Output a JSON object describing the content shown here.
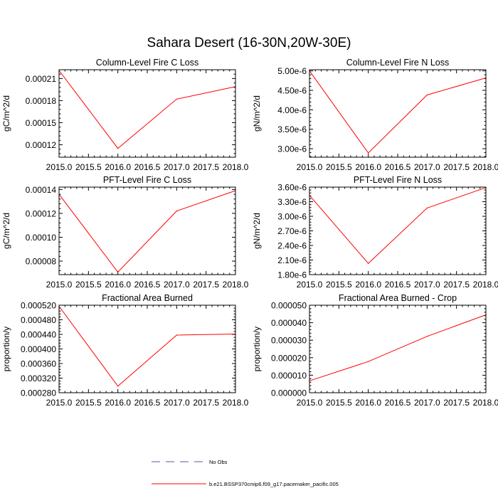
{
  "figure": {
    "title": "Sahara Desert (16-30N,20W-30E)"
  },
  "legend": {
    "placement": "bottom-center",
    "entries": [
      {
        "label": "No Obs",
        "color": "#5a5a9a",
        "dash": true
      },
      {
        "label": "b.e21.BSSP370cmip6.f09_g17.pacemaker_pacific.005",
        "color": "#ff0000",
        "dash": false
      }
    ]
  },
  "chart_data": [
    {
      "type": "line",
      "title": "Column-Level Fire C Loss",
      "ylabel": "gC/m^2/d",
      "xlabel": "",
      "x": [
        2015.0,
        2016.0,
        2017.0,
        2018.0
      ],
      "xlim": [
        2015.0,
        2018.0
      ],
      "xticks": [
        "2015.0",
        "2015.5",
        "2016.0",
        "2016.5",
        "2017.0",
        "2017.5",
        "2018.0"
      ],
      "ylim": [
        0.000103,
        0.000222
      ],
      "yticks": [
        "0.00012",
        "0.00015",
        "0.00018",
        "0.00021"
      ],
      "yticks_values": [
        0.00012,
        0.00015,
        0.00018,
        0.00021
      ],
      "series": [
        {
          "values": [
            0.000221,
            0.000115,
            0.000182,
            0.000199
          ],
          "color": "#ff0000"
        }
      ]
    },
    {
      "type": "line",
      "title": "Column-Level Fire N Loss",
      "ylabel": "gN/m^2/d",
      "xlabel": "",
      "x": [
        2015.0,
        2016.0,
        2017.0,
        2018.0
      ],
      "xlim": [
        2015.0,
        2018.0
      ],
      "xticks": [
        "2015.0",
        "2015.5",
        "2016.0",
        "2016.5",
        "2017.0",
        "2017.5",
        "2018.0"
      ],
      "ylim": [
        2.78e-06,
        5.03e-06
      ],
      "yticks": [
        "3.00e-6",
        "3.50e-6",
        "4.00e-6",
        "4.50e-6",
        "5.00e-6"
      ],
      "yticks_values": [
        3e-06,
        3.5e-06,
        4e-06,
        4.5e-06,
        5e-06
      ],
      "series": [
        {
          "values": [
            5e-06,
            2.89e-06,
            4.38e-06,
            4.82e-06
          ],
          "color": "#ff0000"
        }
      ]
    },
    {
      "type": "line",
      "title": "PFT-Level Fire C Loss",
      "ylabel": "gC/m^2/d",
      "xlabel": "",
      "x": [
        2015.0,
        2016.0,
        2017.0,
        2018.0
      ],
      "xlim": [
        2015.0,
        2018.0
      ],
      "xticks": [
        "2015.0",
        "2015.5",
        "2016.0",
        "2016.5",
        "2017.0",
        "2017.5",
        "2018.0"
      ],
      "ylim": [
        6.87e-05,
        0.000142
      ],
      "yticks": [
        "0.00008",
        "0.00010",
        "0.00012",
        "0.00014"
      ],
      "yticks_values": [
        8e-05,
        0.0001,
        0.00012,
        0.00014
      ],
      "series": [
        {
          "values": [
            0.000136,
            7.08e-05,
            0.000122,
            0.000139
          ],
          "color": "#ff0000"
        }
      ]
    },
    {
      "type": "line",
      "title": "PFT-Level Fire N Loss",
      "ylabel": "gN/m^2/d",
      "xlabel": "",
      "x": [
        2015.0,
        2016.0,
        2017.0,
        2018.0
      ],
      "xlim": [
        2015.0,
        2018.0
      ],
      "xticks": [
        "2015.0",
        "2015.5",
        "2016.0",
        "2016.5",
        "2017.0",
        "2017.5",
        "2018.0"
      ],
      "ylim": [
        1.8e-06,
        3.6e-06
      ],
      "yticks": [
        "1.80e-6",
        "2.10e-6",
        "2.40e-6",
        "2.70e-6",
        "3.00e-6",
        "3.30e-6",
        "3.60e-6"
      ],
      "yticks_values": [
        1.8e-06,
        2.1e-06,
        2.4e-06,
        2.7e-06,
        3e-06,
        3.3e-06,
        3.6e-06
      ],
      "series": [
        {
          "values": [
            3.43e-06,
            2.03e-06,
            3.17e-06,
            3.59e-06
          ],
          "color": "#ff0000"
        }
      ]
    },
    {
      "type": "line",
      "title": "Fractional Area Burned",
      "ylabel": "proportion/y",
      "xlabel": "",
      "x": [
        2015.0,
        2016.0,
        2017.0,
        2018.0
      ],
      "xlim": [
        2015.0,
        2018.0
      ],
      "xticks": [
        "2015.0",
        "2015.5",
        "2016.0",
        "2016.5",
        "2017.0",
        "2017.5",
        "2018.0"
      ],
      "ylim": [
        0.00028,
        0.00052
      ],
      "yticks": [
        "0.000280",
        "0.000320",
        "0.000360",
        "0.000400",
        "0.000440",
        "0.000480",
        "0.000520"
      ],
      "yticks_values": [
        0.00028,
        0.00032,
        0.00036,
        0.0004,
        0.00044,
        0.00048,
        0.00052
      ],
      "series": [
        {
          "values": [
            0.000517,
            0.000298,
            0.000438,
            0.000441
          ],
          "color": "#ff0000"
        }
      ]
    },
    {
      "type": "line",
      "title": "Fractional Area Burned - Crop",
      "ylabel": "proportion/y",
      "xlabel": "",
      "x": [
        2015.0,
        2016.0,
        2017.0,
        2018.0
      ],
      "xlim": [
        2015.0,
        2018.0
      ],
      "xticks": [
        "2015.0",
        "2015.5",
        "2016.0",
        "2016.5",
        "2017.0",
        "2017.5",
        "2018.0"
      ],
      "ylim": [
        0.0,
        5e-05
      ],
      "yticks": [
        "0.000000",
        "0.000010",
        "0.000020",
        "0.000030",
        "0.000040",
        "0.000050"
      ],
      "yticks_values": [
        0.0,
        1e-05,
        2e-05,
        3e-05,
        4e-05,
        5e-05
      ],
      "series": [
        {
          "values": [
            6.8e-06,
            1.78e-05,
            3.22e-05,
            4.45e-05
          ],
          "color": "#ff0000"
        }
      ]
    }
  ]
}
